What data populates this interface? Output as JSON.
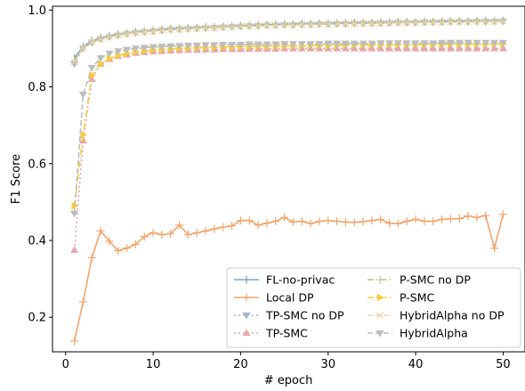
{
  "chart_data": {
    "type": "line",
    "xlabel": "# epoch",
    "ylabel": "F1 Score",
    "xlim": [
      -1.5,
      52.5
    ],
    "ylim": [
      0.11,
      1.01
    ],
    "xticks": [
      "0",
      "10",
      "20",
      "30",
      "40",
      "50"
    ],
    "yticks": [
      "0.2",
      "0.4",
      "0.6",
      "0.8",
      "1.0"
    ],
    "xtick_values": [
      0,
      10,
      20,
      30,
      40,
      50
    ],
    "ytick_values": [
      0.2,
      0.4,
      0.6,
      0.8,
      1.0
    ],
    "grid": false,
    "legend_position": "lower-right",
    "x": [
      1,
      2,
      3,
      4,
      5,
      6,
      7,
      8,
      9,
      10,
      11,
      12,
      13,
      14,
      15,
      16,
      17,
      18,
      19,
      20,
      21,
      22,
      23,
      24,
      25,
      26,
      27,
      28,
      29,
      30,
      31,
      32,
      33,
      34,
      35,
      36,
      37,
      38,
      39,
      40,
      41,
      42,
      43,
      44,
      45,
      46,
      47,
      48,
      49,
      50
    ],
    "series": [
      {
        "name": "FL-no-privac",
        "color": "#7aa6c2",
        "dash": "",
        "marker": "vline",
        "values": [
          0.875,
          0.905,
          0.92,
          0.928,
          0.933,
          0.937,
          0.94,
          0.943,
          0.945,
          0.947,
          0.949,
          0.951,
          0.952,
          0.953,
          0.954,
          0.955,
          0.956,
          0.957,
          0.958,
          0.959,
          0.96,
          0.961,
          0.962,
          0.962,
          0.963,
          0.963,
          0.964,
          0.964,
          0.965,
          0.965,
          0.966,
          0.966,
          0.967,
          0.967,
          0.967,
          0.968,
          0.968,
          0.969,
          0.969,
          0.969,
          0.97,
          0.97,
          0.97,
          0.971,
          0.971,
          0.971,
          0.972,
          0.972,
          0.972,
          0.973
        ]
      },
      {
        "name": "Local DP",
        "color": "#f4a46a",
        "dash": "",
        "marker": "plus",
        "values": [
          0.138,
          0.24,
          0.355,
          0.425,
          0.398,
          0.373,
          0.38,
          0.39,
          0.41,
          0.42,
          0.415,
          0.418,
          0.44,
          0.415,
          0.42,
          0.425,
          0.43,
          0.435,
          0.438,
          0.452,
          0.452,
          0.44,
          0.445,
          0.45,
          0.46,
          0.448,
          0.45,
          0.444,
          0.45,
          0.452,
          0.45,
          0.448,
          0.447,
          0.449,
          0.452,
          0.455,
          0.445,
          0.444,
          0.45,
          0.455,
          0.45,
          0.45,
          0.455,
          0.456,
          0.457,
          0.464,
          0.46,
          0.465,
          0.38,
          0.468
        ]
      },
      {
        "name": "TP-SMC no DP",
        "color": "#a8b4cc",
        "dash": "2,3",
        "marker": "tri_down",
        "values": [
          0.86,
          0.9,
          0.915,
          0.925,
          0.93,
          0.934,
          0.938,
          0.941,
          0.943,
          0.945,
          0.947,
          0.949,
          0.95,
          0.951,
          0.952,
          0.953,
          0.954,
          0.955,
          0.956,
          0.957,
          0.958,
          0.959,
          0.96,
          0.96,
          0.961,
          0.961,
          0.962,
          0.962,
          0.963,
          0.963,
          0.964,
          0.964,
          0.965,
          0.965,
          0.965,
          0.966,
          0.966,
          0.967,
          0.967,
          0.967,
          0.968,
          0.968,
          0.968,
          0.969,
          0.969,
          0.969,
          0.97,
          0.97,
          0.97,
          0.971
        ]
      },
      {
        "name": "TP-SMC",
        "color": "#e8a5ad",
        "dash": "2,3",
        "marker": "tri_up",
        "values": [
          0.375,
          0.66,
          0.82,
          0.86,
          0.872,
          0.88,
          0.884,
          0.888,
          0.89,
          0.892,
          0.893,
          0.894,
          0.895,
          0.896,
          0.896,
          0.897,
          0.897,
          0.898,
          0.898,
          0.898,
          0.899,
          0.899,
          0.899,
          0.899,
          0.9,
          0.9,
          0.9,
          0.9,
          0.9,
          0.9,
          0.9,
          0.9,
          0.9,
          0.9,
          0.9,
          0.9,
          0.9,
          0.9,
          0.9,
          0.9,
          0.9,
          0.9,
          0.9,
          0.9,
          0.9,
          0.9,
          0.9,
          0.9,
          0.9,
          0.9
        ]
      },
      {
        "name": "P-SMC no DP",
        "color": "#b6c77d",
        "dash": "7,3,1.5,3",
        "marker": "vline",
        "values": [
          0.868,
          0.902,
          0.917,
          0.926,
          0.931,
          0.935,
          0.939,
          0.942,
          0.944,
          0.946,
          0.948,
          0.95,
          0.951,
          0.952,
          0.953,
          0.954,
          0.955,
          0.956,
          0.957,
          0.958,
          0.959,
          0.96,
          0.961,
          0.961,
          0.962,
          0.962,
          0.963,
          0.963,
          0.964,
          0.964,
          0.965,
          0.965,
          0.966,
          0.966,
          0.966,
          0.967,
          0.967,
          0.968,
          0.968,
          0.968,
          0.969,
          0.969,
          0.969,
          0.97,
          0.97,
          0.97,
          0.971,
          0.971,
          0.971,
          0.972
        ]
      },
      {
        "name": "P-SMC",
        "color": "#f5cd3a",
        "dash": "7,3,1.5,3",
        "marker": "tri_right",
        "values": [
          0.49,
          0.675,
          0.83,
          0.86,
          0.874,
          0.882,
          0.887,
          0.891,
          0.894,
          0.896,
          0.898,
          0.899,
          0.9,
          0.901,
          0.902,
          0.903,
          0.903,
          0.904,
          0.904,
          0.905,
          0.905,
          0.906,
          0.906,
          0.906,
          0.907,
          0.907,
          0.907,
          0.908,
          0.908,
          0.908,
          0.908,
          0.909,
          0.909,
          0.909,
          0.909,
          0.909,
          0.91,
          0.91,
          0.91,
          0.91,
          0.91,
          0.91,
          0.911,
          0.911,
          0.911,
          0.911,
          0.911,
          0.911,
          0.912,
          0.912
        ]
      },
      {
        "name": "HybridAlpha no DP",
        "color": "#ecd0a8",
        "dash": "6,3",
        "marker": "x",
        "values": [
          0.865,
          0.901,
          0.916,
          0.925,
          0.93,
          0.934,
          0.938,
          0.941,
          0.943,
          0.945,
          0.947,
          0.949,
          0.95,
          0.951,
          0.952,
          0.953,
          0.954,
          0.955,
          0.956,
          0.957,
          0.958,
          0.959,
          0.96,
          0.96,
          0.961,
          0.961,
          0.962,
          0.962,
          0.963,
          0.963,
          0.964,
          0.964,
          0.965,
          0.965,
          0.965,
          0.966,
          0.966,
          0.967,
          0.967,
          0.967,
          0.968,
          0.968,
          0.968,
          0.969,
          0.969,
          0.969,
          0.97,
          0.97,
          0.97,
          0.971
        ]
      },
      {
        "name": "HybridAlpha",
        "color": "#bdbdbd",
        "dash": "6,3",
        "marker": "tri_down",
        "values": [
          0.47,
          0.78,
          0.85,
          0.875,
          0.887,
          0.893,
          0.897,
          0.9,
          0.902,
          0.904,
          0.905,
          0.906,
          0.907,
          0.908,
          0.908,
          0.909,
          0.909,
          0.91,
          0.91,
          0.91,
          0.911,
          0.911,
          0.911,
          0.911,
          0.912,
          0.912,
          0.912,
          0.912,
          0.912,
          0.913,
          0.913,
          0.913,
          0.913,
          0.913,
          0.913,
          0.914,
          0.914,
          0.914,
          0.914,
          0.914,
          0.914,
          0.914,
          0.915,
          0.915,
          0.915,
          0.915,
          0.915,
          0.915,
          0.915,
          0.915
        ]
      }
    ]
  }
}
